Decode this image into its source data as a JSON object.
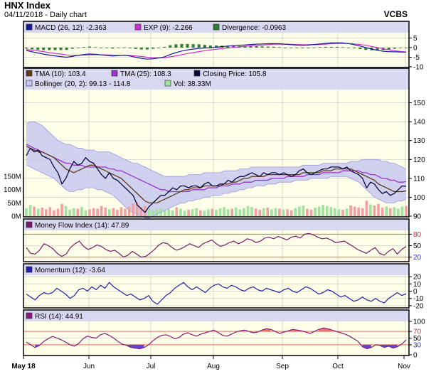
{
  "header": {
    "title": "HNX Index",
    "subtitle": "04/11/2018 - Daily chart",
    "source": "VCBS"
  },
  "x_labels": [
    "May 18",
    "Jun",
    "Jul",
    "Aug",
    "Sep",
    "Oct",
    "Nov"
  ],
  "colors": {
    "panel_bg": "#fefee8",
    "legend_bg": "#d8d8f0",
    "frame": "#000000",
    "grid": "#d0d0d0",
    "macd": "#1a1a9a",
    "signal": "#cc33cc",
    "divergence": "#2e7d32",
    "tma10": "#5d3a1a",
    "tma25": "#9933cc",
    "close": "#0a0a3a",
    "bollinger_fill": "#c8c8f0",
    "bollinger_line": "#9999dd",
    "vol_up": "#9fe39f",
    "vol_down": "#f4a0a0",
    "mfi": "#7a1a6a",
    "momentum": "#2222aa",
    "rsi": "#8a1a7a",
    "ref_line": "#d07060",
    "rsi_over": "#f07070",
    "rsi_under": "#6644cc"
  },
  "chart_data": [
    {
      "type": "line",
      "panel": "macd",
      "legend": [
        {
          "label": "MACD (26, 12): -2.363",
          "color": "#1a1a9a"
        },
        {
          "label": "EXP (9): -2.266",
          "color": "#cc33cc"
        },
        {
          "label": "Divergence: -0.0963",
          "color": "#2e7d32"
        }
      ],
      "yticks": [
        5,
        0,
        -5,
        -10
      ],
      "ylim": [
        -10,
        7
      ],
      "series": [
        {
          "name": "MACD (26, 12)",
          "values": [
            -1.5,
            -2.2,
            -2.8,
            -3.4,
            -3.9,
            -4.3,
            -4.7,
            -5.0,
            -4.6,
            -4.0,
            -3.6,
            -3.3,
            -3.5,
            -3.8,
            -4.1,
            -4.4,
            -4.2,
            -3.9,
            -4.4,
            -5.0,
            -5.6,
            -6.0,
            -5.8,
            -5.4,
            -4.8,
            -3.6,
            -2.6,
            -1.8,
            -1.2,
            -0.8,
            -0.4,
            -0.2,
            -0.1,
            0.2,
            0.5,
            0.8,
            1.0,
            1.2,
            1.4,
            1.6,
            1.8,
            1.9,
            2.0,
            2.1,
            2.0,
            1.8,
            1.5,
            1.3,
            1.2,
            1.3,
            1.6,
            1.9,
            2.2,
            2.4,
            2.5,
            2.4,
            2.1,
            1.5,
            0.8,
            0.0,
            -0.8,
            -1.4,
            -1.9,
            -2.1,
            -2.2,
            -2.3,
            -2.363
          ]
        },
        {
          "name": "EXP (9)",
          "values": [
            -1.0,
            -1.3,
            -1.7,
            -2.1,
            -2.6,
            -3.0,
            -3.4,
            -3.8,
            -4.0,
            -4.0,
            -3.9,
            -3.8,
            -3.7,
            -3.7,
            -3.8,
            -3.9,
            -4.0,
            -4.0,
            -4.1,
            -4.3,
            -4.6,
            -5.0,
            -5.2,
            -5.3,
            -5.2,
            -4.8,
            -4.3,
            -3.7,
            -3.1,
            -2.6,
            -2.1,
            -1.6,
            -1.2,
            -0.9,
            -0.5,
            -0.2,
            0.1,
            0.4,
            0.7,
            0.9,
            1.1,
            1.3,
            1.5,
            1.7,
            1.8,
            1.8,
            1.7,
            1.6,
            1.5,
            1.5,
            1.5,
            1.6,
            1.8,
            2.0,
            2.1,
            2.2,
            2.1,
            1.9,
            1.6,
            1.2,
            0.6,
            0.0,
            -0.6,
            -1.1,
            -1.6,
            -2.0,
            -2.266
          ]
        }
      ]
    },
    {
      "type": "line",
      "panel": "price",
      "legend": [
        {
          "label": "TMA (10): 103.4",
          "color": "#5d3a1a"
        },
        {
          "label": "TMA (25): 108.3",
          "color": "#9933cc"
        },
        {
          "label": "Closing Price: 105.8",
          "color": "#0a0a3a"
        },
        {
          "label": "Bollinger (20, 2): 99.13 - 114.8",
          "color": "#c8c8f0"
        },
        {
          "label": "Vol: 38.33M",
          "color": "#9fe39f"
        }
      ],
      "yticks": [
        150,
        140,
        130,
        120,
        110,
        100,
        90
      ],
      "ylim": [
        90,
        157
      ],
      "vol_ticks": [
        "150M",
        "100M",
        "50M",
        "0M"
      ],
      "vol_lim": [
        0,
        150
      ],
      "series": [
        {
          "name": "Closing Price",
          "values": [
            122,
            126,
            124,
            125,
            122,
            121,
            120,
            116,
            113,
            107,
            110,
            115,
            119,
            117,
            118,
            121,
            119,
            118,
            115,
            112,
            110,
            113,
            110,
            109,
            107,
            105,
            103,
            101,
            96,
            94,
            92,
            95,
            97,
            99,
            101,
            101,
            103,
            105,
            104,
            106,
            106,
            105,
            106,
            106,
            105,
            107,
            108,
            106,
            106,
            107,
            107,
            109,
            108,
            110,
            111,
            111,
            112,
            113,
            112,
            111,
            113,
            112,
            113,
            113,
            112,
            113,
            112,
            111,
            112,
            114,
            115,
            113,
            112,
            113,
            114,
            115,
            115,
            116,
            116,
            116,
            115,
            116,
            114,
            113,
            112,
            110,
            105,
            108,
            107,
            104,
            102,
            103,
            101,
            102,
            104,
            106,
            105.8
          ]
        },
        {
          "name": "TMA (10)",
          "values": [
            127,
            126,
            125,
            124,
            124,
            123,
            122,
            121,
            119,
            117,
            115,
            114,
            113,
            114,
            115,
            116,
            117,
            117,
            116,
            115,
            114,
            113,
            112,
            111,
            110,
            108,
            106,
            104,
            102,
            100,
            98,
            97,
            97,
            97,
            98,
            99,
            100,
            101,
            102,
            103,
            104,
            104,
            105,
            105,
            105,
            106,
            106,
            106,
            106,
            106,
            107,
            107,
            108,
            108,
            109,
            110,
            110,
            111,
            111,
            111,
            111,
            112,
            112,
            112,
            112,
            112,
            112,
            112,
            112,
            112,
            113,
            113,
            113,
            113,
            113,
            114,
            114,
            114,
            115,
            115,
            115,
            115,
            115,
            114,
            113,
            112,
            111,
            110,
            109,
            107,
            106,
            105,
            104,
            103,
            103,
            103,
            103.4
          ]
        },
        {
          "name": "TMA (25)",
          "values": [
            128,
            127,
            126,
            125,
            124,
            123,
            122,
            121,
            120,
            119,
            118,
            118,
            117,
            117,
            117,
            116,
            116,
            116,
            116,
            116,
            116,
            115,
            115,
            114,
            114,
            113,
            112,
            111,
            110,
            109,
            108,
            107,
            106,
            105,
            104,
            104,
            103,
            103,
            103,
            103,
            103,
            103,
            104,
            104,
            104,
            104,
            105,
            105,
            105,
            106,
            106,
            106,
            107,
            107,
            107,
            108,
            108,
            108,
            109,
            109,
            109,
            109,
            110,
            110,
            110,
            110,
            111,
            111,
            111,
            111,
            111,
            112,
            112,
            112,
            112,
            113,
            113,
            113,
            113,
            113,
            114,
            114,
            114,
            114,
            114,
            113,
            113,
            112,
            112,
            111,
            110,
            110,
            109,
            109,
            108,
            108,
            108.3
          ]
        },
        {
          "name": "Bollinger upper",
          "values": [
            139,
            140,
            140,
            139,
            138,
            136,
            134,
            132,
            130,
            129,
            128,
            128,
            127,
            126,
            126,
            125,
            125,
            125,
            124,
            124,
            124,
            124,
            123,
            122,
            121,
            120,
            119,
            118,
            118,
            117,
            116,
            115,
            114,
            113,
            112,
            111,
            111,
            111,
            111,
            111,
            111,
            112,
            112,
            112,
            112,
            113,
            113,
            113,
            113,
            113,
            114,
            114,
            114,
            114,
            115,
            115,
            115,
            116,
            116,
            116,
            116,
            116,
            116,
            116,
            116,
            116,
            116,
            116,
            116,
            116,
            117,
            117,
            117,
            117,
            117,
            118,
            118,
            118,
            118,
            118,
            118,
            118,
            119,
            119,
            119,
            120,
            120,
            120,
            120,
            120,
            119,
            119,
            118,
            118,
            117,
            116,
            114.8
          ]
        },
        {
          "name": "Bollinger lower",
          "values": [
            117,
            116,
            115,
            114,
            113,
            112,
            111,
            110,
            108,
            106,
            104,
            103,
            103,
            104,
            104,
            105,
            105,
            105,
            104,
            104,
            103,
            102,
            101,
            99,
            97,
            95,
            93,
            92,
            91,
            90,
            89,
            89,
            90,
            91,
            92,
            93,
            94,
            95,
            96,
            97,
            97,
            98,
            98,
            99,
            99,
            100,
            100,
            101,
            101,
            101,
            102,
            102,
            103,
            103,
            104,
            104,
            105,
            105,
            106,
            106,
            106,
            107,
            107,
            107,
            108,
            108,
            108,
            108,
            109,
            109,
            109,
            109,
            110,
            110,
            110,
            110,
            110,
            111,
            111,
            111,
            111,
            111,
            110,
            109,
            108,
            106,
            104,
            102,
            100,
            99,
            98,
            97,
            97,
            97,
            98,
            98,
            99.13
          ]
        }
      ],
      "volume": [
        30,
        42,
        36,
        28,
        32,
        26,
        34,
        22,
        28,
        46,
        38,
        24,
        30,
        28,
        34,
        22,
        26,
        30,
        28,
        38,
        32,
        26,
        30,
        24,
        34,
        28,
        36,
        48,
        54,
        34,
        38,
        26,
        22,
        28,
        30,
        24,
        26,
        22,
        34,
        28,
        20,
        24,
        26,
        30,
        22,
        20,
        26,
        28,
        24,
        30,
        34,
        26,
        28,
        32,
        26,
        30,
        38,
        34,
        28,
        24,
        30,
        32,
        26,
        30,
        28,
        24,
        26,
        22,
        30,
        36,
        40,
        28,
        24,
        32,
        36,
        42,
        38,
        34,
        30,
        26,
        24,
        28,
        40,
        36,
        32,
        30,
        58,
        44,
        40,
        46,
        32,
        36,
        30,
        34,
        28,
        36,
        38.33
      ]
    },
    {
      "type": "line",
      "panel": "mfi",
      "legend": [
        {
          "label": "Money Flow Index (14): 47.89",
          "color": "#7a1a6a"
        }
      ],
      "yticks": [
        80,
        50,
        20
      ],
      "ylim": [
        10,
        90
      ],
      "series": [
        {
          "name": "Money Flow Index (14)",
          "values": [
            45,
            30,
            28,
            38,
            55,
            50,
            42,
            30,
            22,
            28,
            45,
            55,
            62,
            48,
            40,
            45,
            52,
            48,
            40,
            35,
            38,
            30,
            20,
            25,
            35,
            28,
            20,
            22,
            30,
            40,
            52,
            58,
            55,
            45,
            38,
            42,
            48,
            55,
            50,
            45,
            55,
            60,
            65,
            55,
            48,
            52,
            58,
            62,
            55,
            60,
            68,
            65,
            58,
            62,
            70,
            72,
            68,
            74,
            70,
            65,
            72,
            75,
            70,
            80,
            82,
            78,
            72,
            68,
            70,
            65,
            58,
            60,
            62,
            55,
            48,
            40,
            35,
            30,
            38,
            45,
            30,
            25,
            35,
            42,
            28,
            40,
            47.89
          ]
        }
      ]
    },
    {
      "type": "line",
      "panel": "momentum",
      "legend": [
        {
          "label": "Momentum (12): -3.64",
          "color": "#2222aa"
        }
      ],
      "yticks": [
        20,
        10,
        0,
        -10,
        -20
      ],
      "ylim": [
        -22,
        22
      ],
      "series": [
        {
          "name": "Momentum (12)",
          "values": [
            -4,
            -8,
            -12,
            -6,
            -2,
            -4,
            -2,
            4,
            0,
            -4,
            -10,
            -6,
            2,
            4,
            0,
            6,
            2,
            8,
            4,
            12,
            6,
            2,
            -2,
            -6,
            -4,
            -8,
            -12,
            -10,
            -6,
            -14,
            -18,
            -12,
            -6,
            -2,
            4,
            8,
            12,
            6,
            2,
            6,
            2,
            -2,
            4,
            8,
            10,
            6,
            4,
            8,
            6,
            2,
            0,
            4,
            6,
            2,
            0,
            4,
            2,
            0,
            -2,
            2,
            4,
            0,
            -2,
            2,
            6,
            4,
            0,
            -4,
            -2,
            2,
            0,
            -4,
            -8,
            -6,
            -10,
            -14,
            -12,
            -8,
            -12,
            -14,
            -10,
            -14,
            -16,
            -10,
            -6,
            -2,
            -6,
            -3.64
          ]
        }
      ]
    },
    {
      "type": "line",
      "panel": "rsi",
      "legend": [
        {
          "label": "RSI (14): 44.91",
          "color": "#8a1a7a"
        }
      ],
      "yticks": [
        100,
        70,
        50,
        30,
        0
      ],
      "ylim": [
        0,
        100
      ],
      "series": [
        {
          "name": "RSI (14)",
          "values": [
            38,
            30,
            22,
            28,
            40,
            48,
            55,
            50,
            45,
            38,
            30,
            26,
            34,
            48,
            56,
            52,
            50,
            60,
            64,
            58,
            50,
            40,
            32,
            28,
            22,
            20,
            18,
            22,
            30,
            42,
            52,
            58,
            60,
            55,
            48,
            52,
            62,
            66,
            60,
            56,
            62,
            66,
            70,
            74,
            66,
            58,
            56,
            62,
            68,
            72,
            74,
            70,
            66,
            68,
            74,
            78,
            76,
            70,
            64,
            68,
            72,
            76,
            74,
            72,
            68,
            64,
            70,
            76,
            80,
            78,
            74,
            70,
            66,
            62,
            56,
            48,
            40,
            24,
            18,
            22,
            30,
            28,
            22,
            26,
            20,
            24,
            32,
            44.91
          ]
        }
      ]
    }
  ]
}
